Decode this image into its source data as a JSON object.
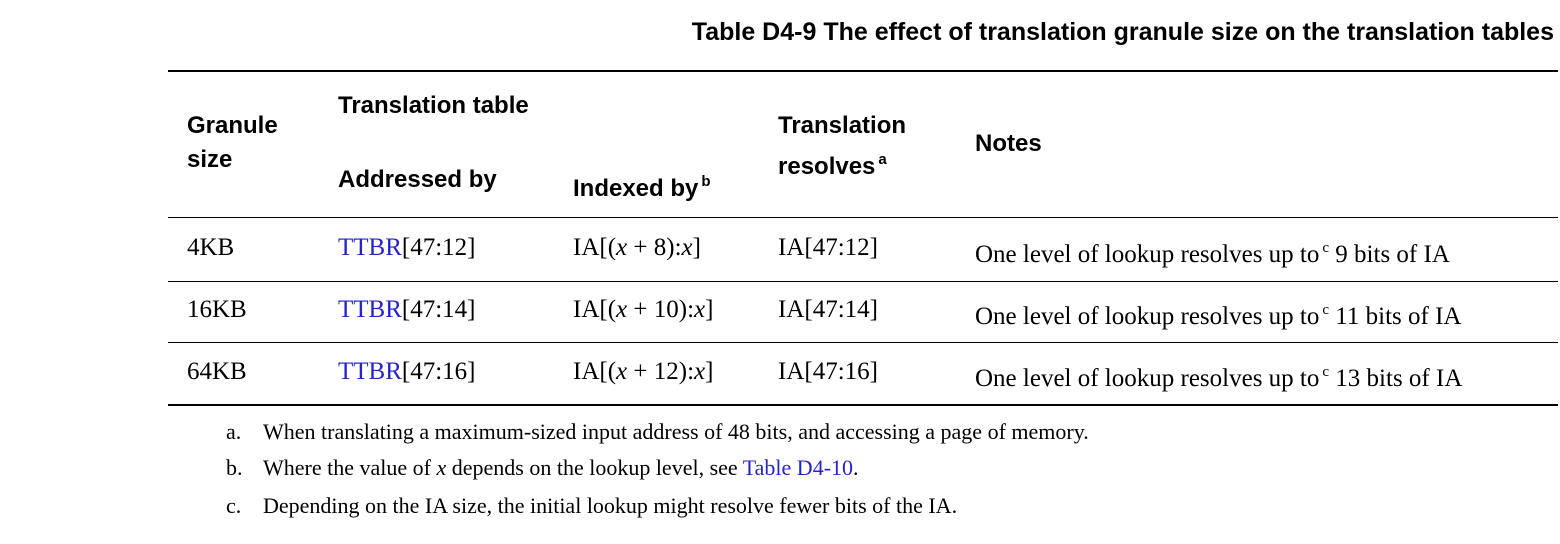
{
  "table": {
    "caption": "Table D4-9 The effect of translation granule size on the translation tables",
    "headers": {
      "granule_line1": "Granule",
      "granule_line2": "size",
      "group": "Translation table",
      "addressed_by": "Addressed by",
      "indexed_by": "Indexed by",
      "indexed_by_note": "b",
      "resolves_line1": "Translation",
      "resolves_line2": "resolves",
      "resolves_note": "a",
      "notes": "Notes"
    },
    "rows": [
      {
        "granule": "4KB",
        "addr_link": "TTBR",
        "addr_range": "[47:12]",
        "idx_pre": "IA[(",
        "idx_var1": "x",
        "idx_mid": " + 8):",
        "idx_var2": "x",
        "idx_post": "]",
        "resolves": "IA[47:12]",
        "notes_pre": "One level of lookup resolves up to",
        "notes_mark": "c",
        "notes_post": " 9 bits of IA"
      },
      {
        "granule": "16KB",
        "addr_link": "TTBR",
        "addr_range": "[47:14]",
        "idx_pre": "IA[(",
        "idx_var1": "x",
        "idx_mid": " + 10):",
        "idx_var2": "x",
        "idx_post": "]",
        "resolves": "IA[47:14]",
        "notes_pre": "One level of lookup resolves up to",
        "notes_mark": "c",
        "notes_post": " 11 bits of IA"
      },
      {
        "granule": "64KB",
        "addr_link": "TTBR",
        "addr_range": "[47:16]",
        "idx_pre": "IA[(",
        "idx_var1": "x",
        "idx_mid": " + 12):",
        "idx_var2": "x",
        "idx_post": "]",
        "resolves": "IA[47:16]",
        "notes_pre": "One level of lookup resolves up to",
        "notes_mark": "c",
        "notes_post": " 13 bits of IA"
      }
    ]
  },
  "footnotes": [
    {
      "letter": "a.",
      "text": "When translating a maximum-sized input address of 48 bits, and accessing a page of memory."
    },
    {
      "letter": "b.",
      "text_pre": "Where the value of ",
      "var": "x",
      "text_mid": " depends on the lookup level, see ",
      "link": "Table D4-10",
      "text_post": "."
    },
    {
      "letter": "c.",
      "text": "Depending on the IA size, the initial lookup might resolve fewer bits of the IA."
    }
  ],
  "colors": {
    "link": "#2424c8",
    "rule": "#000000"
  }
}
